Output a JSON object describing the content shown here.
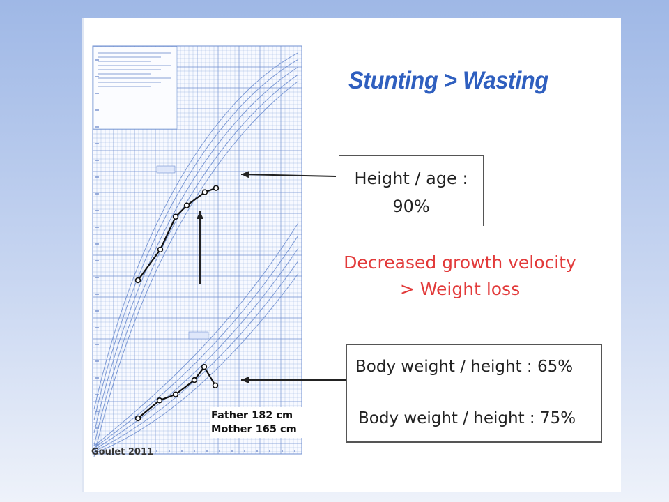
{
  "slide": {
    "title": "Stunting > Wasting",
    "height_box": {
      "line1": "Height / age :",
      "line2": "90%"
    },
    "velocity_text": {
      "line1": "Decreased growth velocity",
      "line2": "> Weight loss"
    },
    "weight_box": {
      "line1": "Body weight / height :  65%",
      "line2": "Body weight / height : 75%"
    },
    "parents": {
      "father": "Father 182 cm",
      "mother": "Mother 165 cm"
    },
    "credit": "Goulet 2011"
  },
  "colors": {
    "title": "#2f5fbf",
    "red_text": "#e23a3a",
    "grid": "#6f8fd0",
    "plot_line": "#111111",
    "background_top": "#9fb8e6",
    "background_bottom": "#eef2fa"
  },
  "chart_data": {
    "type": "line",
    "series": [
      {
        "values": [
          0,
          0.3,
          0.62,
          0.73,
          0.86,
          0.9
        ]
      },
      {
        "values": [
          0,
          0.3,
          0.4,
          0.64,
          0.86,
          0.55
        ]
      }
    ]
  }
}
